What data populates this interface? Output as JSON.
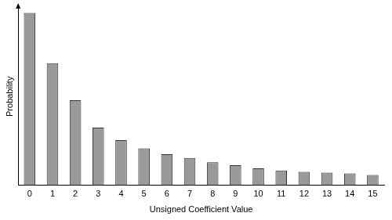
{
  "chart_data": {
    "type": "bar",
    "x_label": "Unsigned Coefficient Value",
    "y_label": "Probability",
    "categories": [
      "0",
      "1",
      "2",
      "3",
      "4",
      "5",
      "6",
      "7",
      "8",
      "9",
      "10",
      "11",
      "12",
      "13",
      "14",
      "15"
    ],
    "values": [
      233,
      165,
      115,
      78,
      61,
      50,
      42,
      37,
      31,
      27,
      23,
      20,
      18,
      17,
      16,
      14
    ],
    "color": "#9a9a9a",
    "ylim": [
      0,
      240
    ],
    "grid": false,
    "tick_labels": "x"
  }
}
